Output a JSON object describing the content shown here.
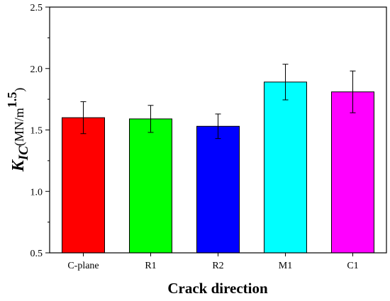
{
  "chart_data": {
    "type": "bar",
    "categories": [
      "C-plane",
      "R1",
      "R2",
      "M1",
      "C1"
    ],
    "values": [
      1.6,
      1.59,
      1.53,
      1.89,
      1.81
    ],
    "errors": [
      0.13,
      0.11,
      0.1,
      0.145,
      0.17
    ],
    "colors": [
      "#ff0000",
      "#00ff00",
      "#0000ff",
      "#00ffff",
      "#ff00ff"
    ],
    "xlabel": "Crack direction",
    "ylabel": {
      "symbol": "K",
      "subscript": "IC",
      "unit": "(MN/m",
      "exponent": "1.5",
      "close": ")"
    },
    "ylim": [
      0.5,
      2.5
    ],
    "yticks": [
      "0.5",
      "1.0",
      "1.5",
      "2.0",
      "2.5"
    ],
    "grid": false,
    "legend": "none"
  }
}
